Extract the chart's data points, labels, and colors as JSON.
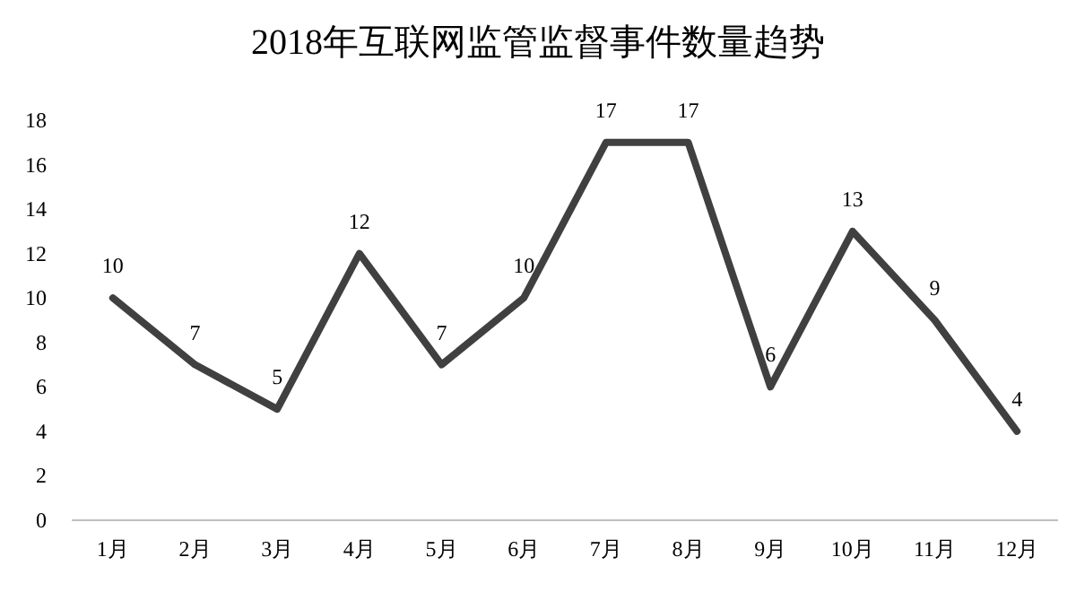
{
  "chart_data": {
    "type": "line",
    "title": "2018年互联网监管监督事件数量趋势",
    "categories": [
      "1月",
      "2月",
      "3月",
      "4月",
      "5月",
      "6月",
      "7月",
      "8月",
      "9月",
      "10月",
      "11月",
      "12月"
    ],
    "values": [
      10,
      7,
      5,
      12,
      7,
      10,
      17,
      17,
      6,
      13,
      9,
      4
    ],
    "color": "#404040",
    "ylim": [
      0,
      18
    ],
    "yticks": [
      0,
      2,
      4,
      6,
      8,
      10,
      12,
      14,
      16,
      18
    ],
    "data_labels": true
  }
}
